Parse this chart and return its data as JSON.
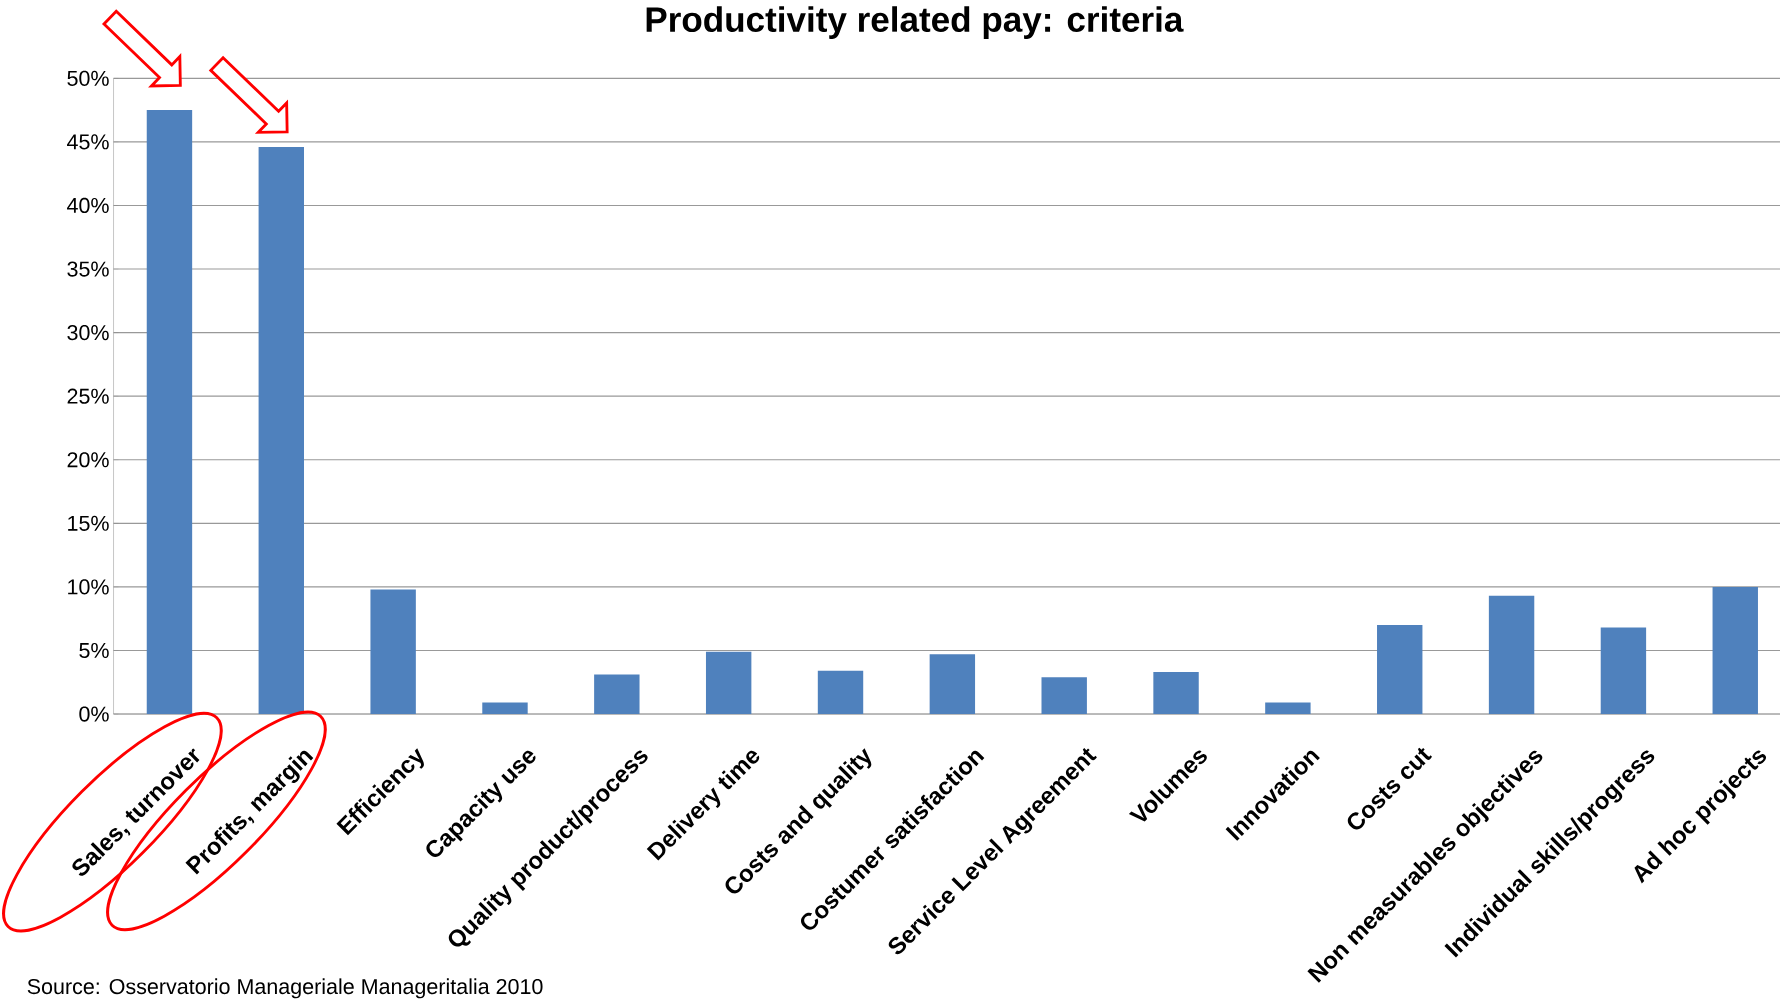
{
  "chart_data": {
    "type": "bar",
    "title": "Productivity related pay: criteria",
    "categories": [
      "Sales, turnover",
      "Profits, margin",
      "Efficiency",
      "Capacity use",
      "Quality product/process",
      "Delivery time",
      "Costs and quality",
      "Costumer satisfaction",
      "Service Level Agreement",
      "Volumes",
      "Innovation",
      "Costs cut",
      "Non measurables objectives",
      "Individual skills/progress",
      "Ad hoc projects"
    ],
    "values": [
      47.5,
      44.6,
      9.8,
      0.9,
      3.1,
      4.9,
      3.4,
      4.7,
      2.9,
      3.3,
      0.9,
      7.0,
      9.3,
      6.8,
      10.0
    ],
    "color": "#4f81bd",
    "ylim": [
      0,
      50
    ],
    "yticks": [
      {
        "value": 0,
        "label": "0%"
      },
      {
        "value": 5,
        "label": "5%"
      },
      {
        "value": 10,
        "label": "10%"
      },
      {
        "value": 15,
        "label": "15%"
      },
      {
        "value": 20,
        "label": "20%"
      },
      {
        "value": 25,
        "label": "25%"
      },
      {
        "value": 30,
        "label": "30%"
      },
      {
        "value": 35,
        "label": "35%"
      },
      {
        "value": 40,
        "label": "40%"
      },
      {
        "value": 45,
        "label": "45%"
      },
      {
        "value": 50,
        "label": "50%"
      }
    ],
    "grid": "y",
    "annotations": [
      "Source: Osservatorio Manageriale Manageritalia 2010"
    ]
  }
}
